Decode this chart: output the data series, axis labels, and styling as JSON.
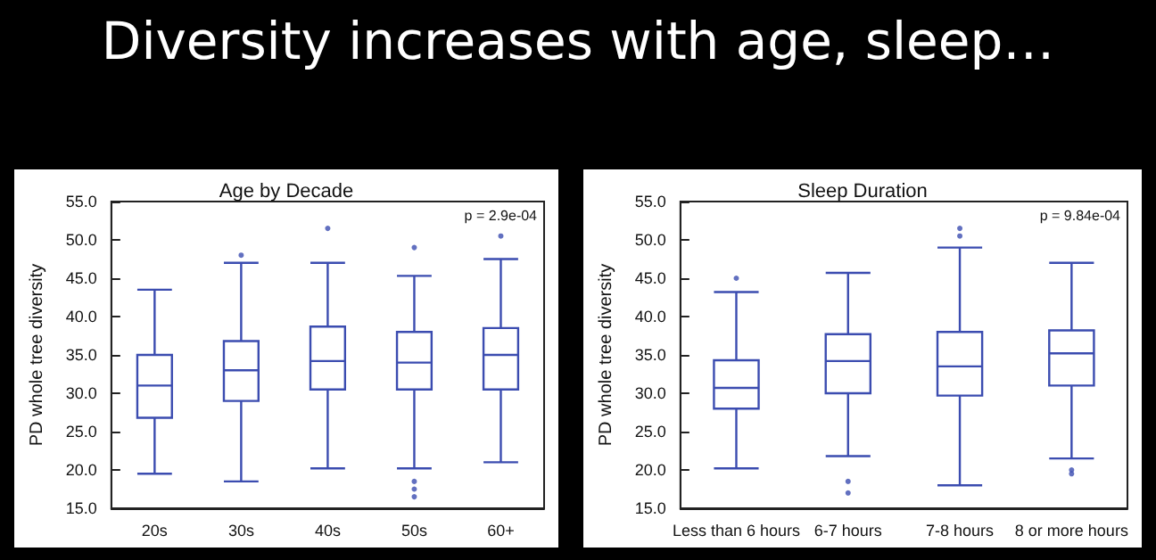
{
  "chart_data": [
    {
      "type": "box",
      "title": "Age by Decade",
      "ylabel": "PD whole tree diversity",
      "annotations": [
        "Diversity increases with age, sleep…",
        "p = 2.9e-04"
      ],
      "categories": [
        "20s",
        "30s",
        "40s",
        "50s",
        "60+"
      ],
      "ylim": [
        15,
        55
      ],
      "yticks": [
        {
          "value": 15,
          "label": "15.0"
        },
        {
          "value": 20,
          "label": "20.0"
        },
        {
          "value": 25,
          "label": "25.0"
        },
        {
          "value": 30,
          "label": "30.0"
        },
        {
          "value": 35,
          "label": "35.0"
        },
        {
          "value": 40,
          "label": "40.0"
        },
        {
          "value": 45,
          "label": "45.0"
        },
        {
          "value": 50,
          "label": "50.0"
        },
        {
          "value": 55,
          "label": "55.0"
        }
      ],
      "grid": false,
      "series": [
        {
          "color": "#3b4cb0",
          "boxes": [
            {
              "low": 19.5,
              "q1": 26.8,
              "median": 31,
              "q3": 35,
              "high": 43.5
            },
            {
              "low": 18.5,
              "q1": 29,
              "median": 33,
              "q3": 36.8,
              "high": 47,
              "outliers": [
                48
              ]
            },
            {
              "low": 20.2,
              "q1": 30.5,
              "median": 34.2,
              "q3": 38.7,
              "high": 47,
              "outliers": [
                51.5
              ]
            },
            {
              "low": 20.2,
              "q1": 30.5,
              "median": 34,
              "q3": 38,
              "high": 45.3,
              "outliers": [
                49,
                18.5,
                17.5,
                16.5
              ]
            },
            {
              "low": 21,
              "q1": 30.5,
              "median": 35,
              "q3": 38.5,
              "high": 47.5,
              "outliers": [
                50.5
              ]
            }
          ]
        }
      ]
    },
    {
      "type": "box",
      "title": "Sleep Duration",
      "ylabel": "PD whole tree diversity",
      "annotations": [
        "p = 9.84e-04"
      ],
      "categories": [
        "Less than 6 hours",
        "6-7 hours",
        "7-8 hours",
        "8 or more hours"
      ],
      "ylim": [
        15,
        55
      ],
      "yticks": [
        {
          "value": 15,
          "label": "15.0"
        },
        {
          "value": 20,
          "label": "20.0"
        },
        {
          "value": 25,
          "label": "25.0"
        },
        {
          "value": 30,
          "label": "30.0"
        },
        {
          "value": 35,
          "label": "35.0"
        },
        {
          "value": 40,
          "label": "40.0"
        },
        {
          "value": 45,
          "label": "45.0"
        },
        {
          "value": 50,
          "label": "50.0"
        },
        {
          "value": 55,
          "label": "55.0"
        }
      ],
      "grid": false,
      "series": [
        {
          "color": "#3b4cb0",
          "boxes": [
            {
              "low": 20.2,
              "q1": 28,
              "median": 30.7,
              "q3": 34.3,
              "high": 43.2,
              "outliers": [
                45
              ]
            },
            {
              "low": 21.8,
              "q1": 30,
              "median": 34.2,
              "q3": 37.7,
              "high": 45.7,
              "outliers": [
                18.5,
                17
              ]
            },
            {
              "low": 18,
              "q1": 29.7,
              "median": 33.5,
              "q3": 38,
              "high": 49,
              "outliers": [
                50.5,
                51.5
              ]
            },
            {
              "low": 21.5,
              "q1": 31,
              "median": 35.2,
              "q3": 38.2,
              "high": 47,
              "outliers": [
                20,
                19.5
              ]
            }
          ]
        }
      ]
    }
  ]
}
